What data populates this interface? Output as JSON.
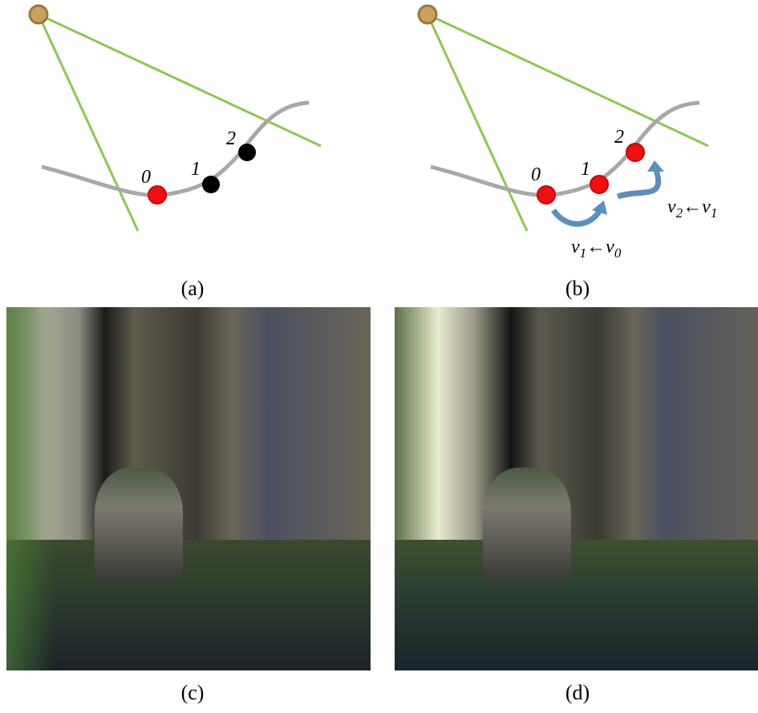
{
  "panels": [
    {
      "points": [
        "0",
        "1",
        "2"
      ],
      "caption": "(a)"
    },
    {
      "points": [
        "0",
        "1",
        "2"
      ],
      "caption": "(b)",
      "annotations": [
        {
          "parts": [
            "v",
            "1",
            "←",
            "v",
            "0"
          ]
        },
        {
          "parts": [
            "v",
            "2",
            "←",
            "v",
            "1"
          ]
        }
      ]
    },
    {
      "caption": "(c)"
    },
    {
      "caption": "(d)"
    }
  ]
}
